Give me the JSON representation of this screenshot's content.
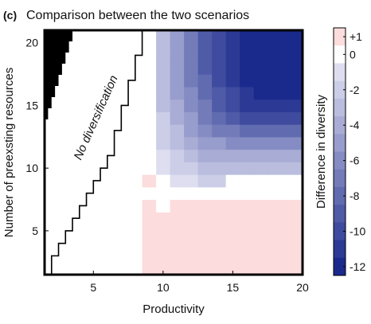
{
  "chart_data": {
    "type": "heatmap",
    "panel_label": "(c)",
    "title": "Comparison between the two scenarios",
    "xlabel": "Productivity",
    "ylabel": "Number of preexsting resources",
    "colorbar_label": "Difference in diversity",
    "annotation": "No diversification",
    "xlim": [
      1.5,
      20
    ],
    "ylim": [
      1.5,
      21
    ],
    "xticks": [
      5,
      10,
      15,
      20
    ],
    "yticks": [
      5,
      10,
      15,
      20
    ],
    "colorbar": {
      "range": [
        -12.5,
        1.5
      ],
      "ticks": [
        "+1",
        "0",
        "-2",
        "-4",
        "-6",
        "-8",
        "-10",
        "-12"
      ],
      "tick_values": [
        1,
        0,
        -2,
        -4,
        -6,
        -8,
        -10,
        -12
      ]
    },
    "colors": {
      "positive": "#fcdcdc",
      "zero": "#ffffff",
      "negative_max": "#1a2a8c",
      "black_region": "#000000"
    },
    "x": [
      2,
      3,
      4,
      5,
      6,
      7,
      8,
      9,
      10,
      11,
      12,
      13,
      14,
      15,
      16,
      17,
      18,
      19,
      20
    ],
    "y": [
      2,
      3,
      4,
      5,
      6,
      7,
      8,
      9,
      10,
      11,
      12,
      13,
      14,
      15,
      16,
      17,
      18,
      19,
      20,
      21
    ],
    "values": [
      [
        0,
        0,
        0,
        0,
        0,
        0,
        0,
        1,
        1,
        1,
        1,
        1,
        1,
        1,
        1,
        1,
        1,
        1,
        1
      ],
      [
        0,
        0,
        0,
        0,
        0,
        0,
        0,
        1,
        1,
        1,
        1,
        1,
        1,
        1,
        1,
        1,
        1,
        1,
        1
      ],
      [
        0,
        0,
        0,
        0,
        0,
        0,
        0,
        1,
        1,
        1,
        1,
        1,
        1,
        1,
        1,
        1,
        1,
        1,
        1
      ],
      [
        0,
        0,
        0,
        0,
        0,
        0,
        0,
        1,
        1,
        1,
        1,
        1,
        1,
        1,
        1,
        1,
        1,
        1,
        1
      ],
      [
        0,
        0,
        0,
        0,
        0,
        0,
        0,
        1,
        1,
        1,
        1,
        1,
        1,
        1,
        1,
        1,
        1,
        1,
        1
      ],
      [
        0,
        0,
        0,
        0,
        0,
        0,
        0,
        1,
        0,
        1,
        1,
        1,
        1,
        1,
        1,
        1,
        1,
        1,
        1
      ],
      [
        0,
        0,
        0,
        0,
        0,
        0,
        0,
        0,
        0,
        0,
        0,
        0,
        0,
        0,
        0,
        0,
        0,
        0,
        0
      ],
      [
        0,
        0,
        0,
        0,
        0,
        0,
        0,
        1,
        0,
        -1,
        -1,
        -2,
        -2,
        0,
        0,
        0,
        0,
        0,
        0
      ],
      [
        0,
        0,
        0,
        0,
        0,
        0,
        0,
        0,
        -1,
        -2,
        -2,
        -3,
        -3,
        -3,
        -3,
        -3,
        -3,
        -3,
        -3
      ],
      [
        0,
        0,
        0,
        0,
        0,
        0,
        0,
        0,
        -1,
        -2,
        -3,
        -4,
        -4,
        -4,
        -4,
        -4,
        -4,
        -4,
        -4
      ],
      [
        0,
        0,
        0,
        0,
        0,
        0,
        0,
        0,
        -2,
        -3,
        -4,
        -5,
        -5,
        -6,
        -6,
        -6,
        -6,
        -6,
        -6
      ],
      [
        0,
        0,
        0,
        0,
        0,
        0,
        0,
        0,
        -2,
        -3,
        -5,
        -6,
        -7,
        -7,
        -8,
        -8,
        -8,
        -8,
        -8
      ],
      [
        0,
        0,
        0,
        0,
        0,
        0,
        0,
        0,
        -2,
        -4,
        -5,
        -7,
        -8,
        -9,
        -10,
        -10,
        -10,
        -10,
        -10
      ],
      [
        0,
        0,
        0,
        0,
        0,
        0,
        0,
        0,
        -3,
        -4,
        -6,
        -7,
        -9,
        -10,
        -11,
        -11,
        -11,
        -11,
        -11
      ],
      [
        0,
        0,
        0,
        0,
        0,
        0,
        0,
        0,
        -3,
        -5,
        -6,
        -8,
        -9,
        -10,
        -11,
        -12,
        -12,
        -12,
        -12
      ],
      [
        0,
        0,
        0,
        0,
        0,
        0,
        0,
        0,
        -3,
        -5,
        -7,
        -8,
        -10,
        -11,
        -12,
        -12,
        -12,
        -12,
        -12
      ],
      [
        0,
        0,
        0,
        0,
        0,
        0,
        0,
        0,
        -3,
        -5,
        -7,
        -9,
        -10,
        -11,
        -12,
        -12,
        -12,
        -12,
        -12
      ],
      [
        0,
        0,
        0,
        0,
        0,
        0,
        0,
        0,
        -3,
        -5,
        -7,
        -9,
        -10,
        -11,
        -12,
        -12,
        -12,
        -12,
        -12
      ],
      [
        0,
        0,
        0,
        0,
        0,
        0,
        0,
        0,
        -3,
        -5,
        -7,
        -9,
        -10,
        -11,
        -12,
        -12,
        -12,
        -12,
        -12
      ],
      [
        0,
        0,
        0,
        0,
        0,
        0,
        0,
        0,
        -3,
        -5,
        -7,
        -9,
        -10,
        -11,
        -12,
        -12,
        -12,
        -12,
        -12
      ]
    ],
    "black_region": {
      "x_range": [
        1.5,
        3.5
      ],
      "top_y": 21,
      "bottom_y": 13,
      "step_boundary_x": [
        3.5,
        3.25,
        3.0,
        2.75,
        2.5,
        2.25,
        2.0,
        1.75,
        1.5
      ]
    },
    "no_diversification_boundary": {
      "points": [
        [
          2,
          1.5
        ],
        [
          2,
          3
        ],
        [
          2.5,
          3
        ],
        [
          2.5,
          4
        ],
        [
          3,
          4
        ],
        [
          3,
          5
        ],
        [
          3.5,
          5
        ],
        [
          3.5,
          6
        ],
        [
          4,
          6
        ],
        [
          4,
          7
        ],
        [
          4.5,
          7
        ],
        [
          4.5,
          8
        ],
        [
          5,
          8
        ],
        [
          5,
          9
        ],
        [
          5.5,
          9
        ],
        [
          5.5,
          10
        ],
        [
          6,
          10
        ],
        [
          6,
          11
        ],
        [
          6.5,
          11
        ],
        [
          6.5,
          13
        ],
        [
          7,
          13
        ],
        [
          7,
          15
        ],
        [
          7.5,
          15
        ],
        [
          7.5,
          17
        ],
        [
          8,
          17
        ],
        [
          8,
          19
        ],
        [
          8.5,
          19
        ],
        [
          8.5,
          21
        ]
      ]
    }
  }
}
